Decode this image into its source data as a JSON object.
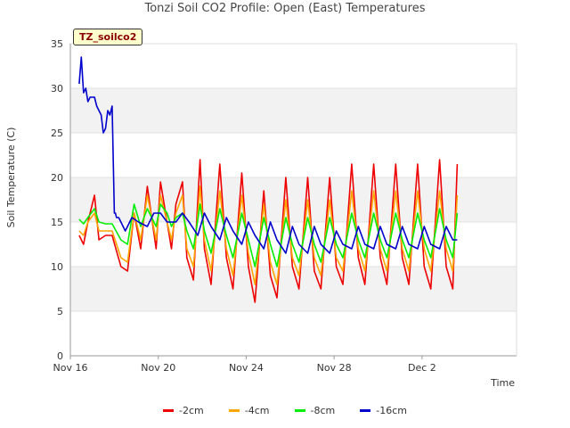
{
  "chart_data": {
    "type": "line",
    "title": "Tonzi Soil CO2 Profile: Open (East) Temperatures",
    "xlabel": "Time",
    "ylabel": "Soil Temperature (C)",
    "ylim": [
      0,
      35
    ],
    "xlim": [
      0,
      20.3
    ],
    "yticks": [
      0,
      5,
      10,
      15,
      20,
      25,
      30,
      35
    ],
    "xticks": [
      {
        "day": 0,
        "label": "Nov 16"
      },
      {
        "day": 4,
        "label": "Nov 20"
      },
      {
        "day": 8,
        "label": "Nov 24"
      },
      {
        "day": 12,
        "label": "Nov 28"
      },
      {
        "day": 16,
        "label": "Dec 2"
      }
    ],
    "badge": "TZ_soilco2",
    "legend_position": "bottom",
    "series": [
      {
        "name": "-2cm",
        "color": "#ee0000",
        "x": [
          0.4,
          0.6,
          0.8,
          1.1,
          1.3,
          1.6,
          1.9,
          2.3,
          2.6,
          2.9,
          3.2,
          3.5,
          3.9,
          4.1,
          4.4,
          4.6,
          4.8,
          5.1,
          5.3,
          5.6,
          5.9,
          6.1,
          6.4,
          6.8,
          7.1,
          7.4,
          7.8,
          8.1,
          8.4,
          8.8,
          9.1,
          9.4,
          9.8,
          10.1,
          10.4,
          10.8,
          11.1,
          11.4,
          11.8,
          12.1,
          12.4,
          12.8,
          13.1,
          13.4,
          13.8,
          14.1,
          14.4,
          14.8,
          15.1,
          15.4,
          15.8,
          16.1,
          16.4,
          16.8,
          17.1,
          17.4,
          17.6
        ],
        "y": [
          13.5,
          12.5,
          15,
          18,
          13,
          13.5,
          13.5,
          10,
          9.5,
          16,
          12,
          19,
          12,
          19.5,
          15,
          12,
          17,
          19.5,
          11,
          8.5,
          22,
          12,
          8,
          21.5,
          11,
          7.5,
          20.5,
          10,
          6,
          18.5,
          9,
          6.5,
          20,
          10,
          7.5,
          20,
          9.5,
          7.5,
          20,
          10,
          8,
          21.5,
          11,
          8,
          21.5,
          11,
          8,
          21.5,
          11,
          8,
          21.5,
          10,
          7.5,
          22,
          10,
          7.5,
          21.5
        ]
      },
      {
        "name": "-4cm",
        "color": "#ffa500",
        "x": [
          0.4,
          0.6,
          0.8,
          1.1,
          1.3,
          1.6,
          1.9,
          2.3,
          2.6,
          2.9,
          3.2,
          3.5,
          3.9,
          4.1,
          4.4,
          4.6,
          4.8,
          5.1,
          5.3,
          5.6,
          5.9,
          6.1,
          6.4,
          6.8,
          7.1,
          7.4,
          7.8,
          8.1,
          8.4,
          8.8,
          9.1,
          9.4,
          9.8,
          10.1,
          10.4,
          10.8,
          11.1,
          11.4,
          11.8,
          12.1,
          12.4,
          12.8,
          13.1,
          13.4,
          13.8,
          14.1,
          14.4,
          14.8,
          15.1,
          15.4,
          15.8,
          16.1,
          16.4,
          16.8,
          17.1,
          17.4,
          17.6
        ],
        "y": [
          14,
          13.5,
          15,
          16,
          14,
          14,
          14,
          11,
          10.5,
          16,
          13,
          18,
          13,
          18,
          15,
          13,
          16,
          18,
          12,
          10,
          19,
          13,
          9.5,
          18.5,
          12,
          9,
          18,
          11.5,
          8,
          17,
          10.5,
          8,
          17.5,
          11,
          9,
          17.5,
          11,
          9,
          17.5,
          11,
          9.5,
          18.5,
          12,
          9.5,
          18.5,
          12,
          9.5,
          18.5,
          12,
          9.5,
          18.5,
          12,
          9.5,
          18.5,
          12,
          9.5,
          18
        ]
      },
      {
        "name": "-8cm",
        "color": "#00ee00",
        "x": [
          0.4,
          0.6,
          0.8,
          1.1,
          1.3,
          1.6,
          1.9,
          2.3,
          2.6,
          2.9,
          3.2,
          3.5,
          3.9,
          4.1,
          4.4,
          4.6,
          4.8,
          5.1,
          5.3,
          5.6,
          5.9,
          6.1,
          6.4,
          6.8,
          7.1,
          7.4,
          7.8,
          8.1,
          8.4,
          8.8,
          9.1,
          9.4,
          9.8,
          10.1,
          10.4,
          10.8,
          11.1,
          11.4,
          11.8,
          12.1,
          12.4,
          12.8,
          13.1,
          13.4,
          13.8,
          14.1,
          14.4,
          14.8,
          15.1,
          15.4,
          15.8,
          16.1,
          16.4,
          16.8,
          17.1,
          17.4,
          17.6
        ],
        "y": [
          15.3,
          14.8,
          15.5,
          16.5,
          15,
          14.8,
          14.8,
          13,
          12.5,
          17,
          14.5,
          16.5,
          14.5,
          17,
          16,
          14.5,
          15.5,
          16,
          14,
          12,
          17,
          14,
          11.5,
          16.5,
          13.5,
          11,
          16,
          13,
          10,
          15.5,
          12.5,
          10,
          15.5,
          12.5,
          10.5,
          15.5,
          12.5,
          10.5,
          15.5,
          12.5,
          11,
          16,
          13,
          11,
          16,
          13,
          11,
          16,
          13,
          11,
          16,
          13,
          11,
          16.5,
          13,
          11,
          16
        ]
      },
      {
        "name": "-16cm",
        "color": "#0000cc",
        "x": [
          0.4,
          0.5,
          0.6,
          0.7,
          0.8,
          0.9,
          1.0,
          1.1,
          1.2,
          1.3,
          1.4,
          1.5,
          1.6,
          1.7,
          1.8,
          1.9,
          2.0,
          2.05,
          2.1,
          2.2,
          2.5,
          2.8,
          3.1,
          3.5,
          3.8,
          4.1,
          4.4,
          4.8,
          5.1,
          5.4,
          5.8,
          6.1,
          6.4,
          6.8,
          7.1,
          7.4,
          7.8,
          8.1,
          8.4,
          8.8,
          9.1,
          9.4,
          9.8,
          10.1,
          10.4,
          10.8,
          11.1,
          11.4,
          11.8,
          12.1,
          12.4,
          12.8,
          13.1,
          13.4,
          13.8,
          14.1,
          14.4,
          14.8,
          15.1,
          15.4,
          15.8,
          16.1,
          16.4,
          16.8,
          17.1,
          17.4,
          17.6
        ],
        "y": [
          30.5,
          33.5,
          29.5,
          30,
          28.5,
          29,
          29,
          29,
          28,
          27.5,
          27,
          25,
          25.5,
          27.5,
          27,
          28,
          16,
          16,
          15.5,
          15.5,
          14,
          15.5,
          15,
          14.5,
          16,
          16,
          15,
          15,
          16,
          15,
          13.5,
          16,
          14.5,
          13,
          15.5,
          14,
          12.5,
          15,
          13.5,
          12,
          15,
          13,
          11.5,
          14.5,
          12.5,
          11.5,
          14.5,
          12.5,
          11.5,
          14,
          12.5,
          12,
          14.5,
          12.5,
          12,
          14.5,
          12.5,
          12,
          14.5,
          12.5,
          12,
          14.5,
          12.5,
          12,
          14.5,
          13,
          13
        ]
      }
    ]
  }
}
